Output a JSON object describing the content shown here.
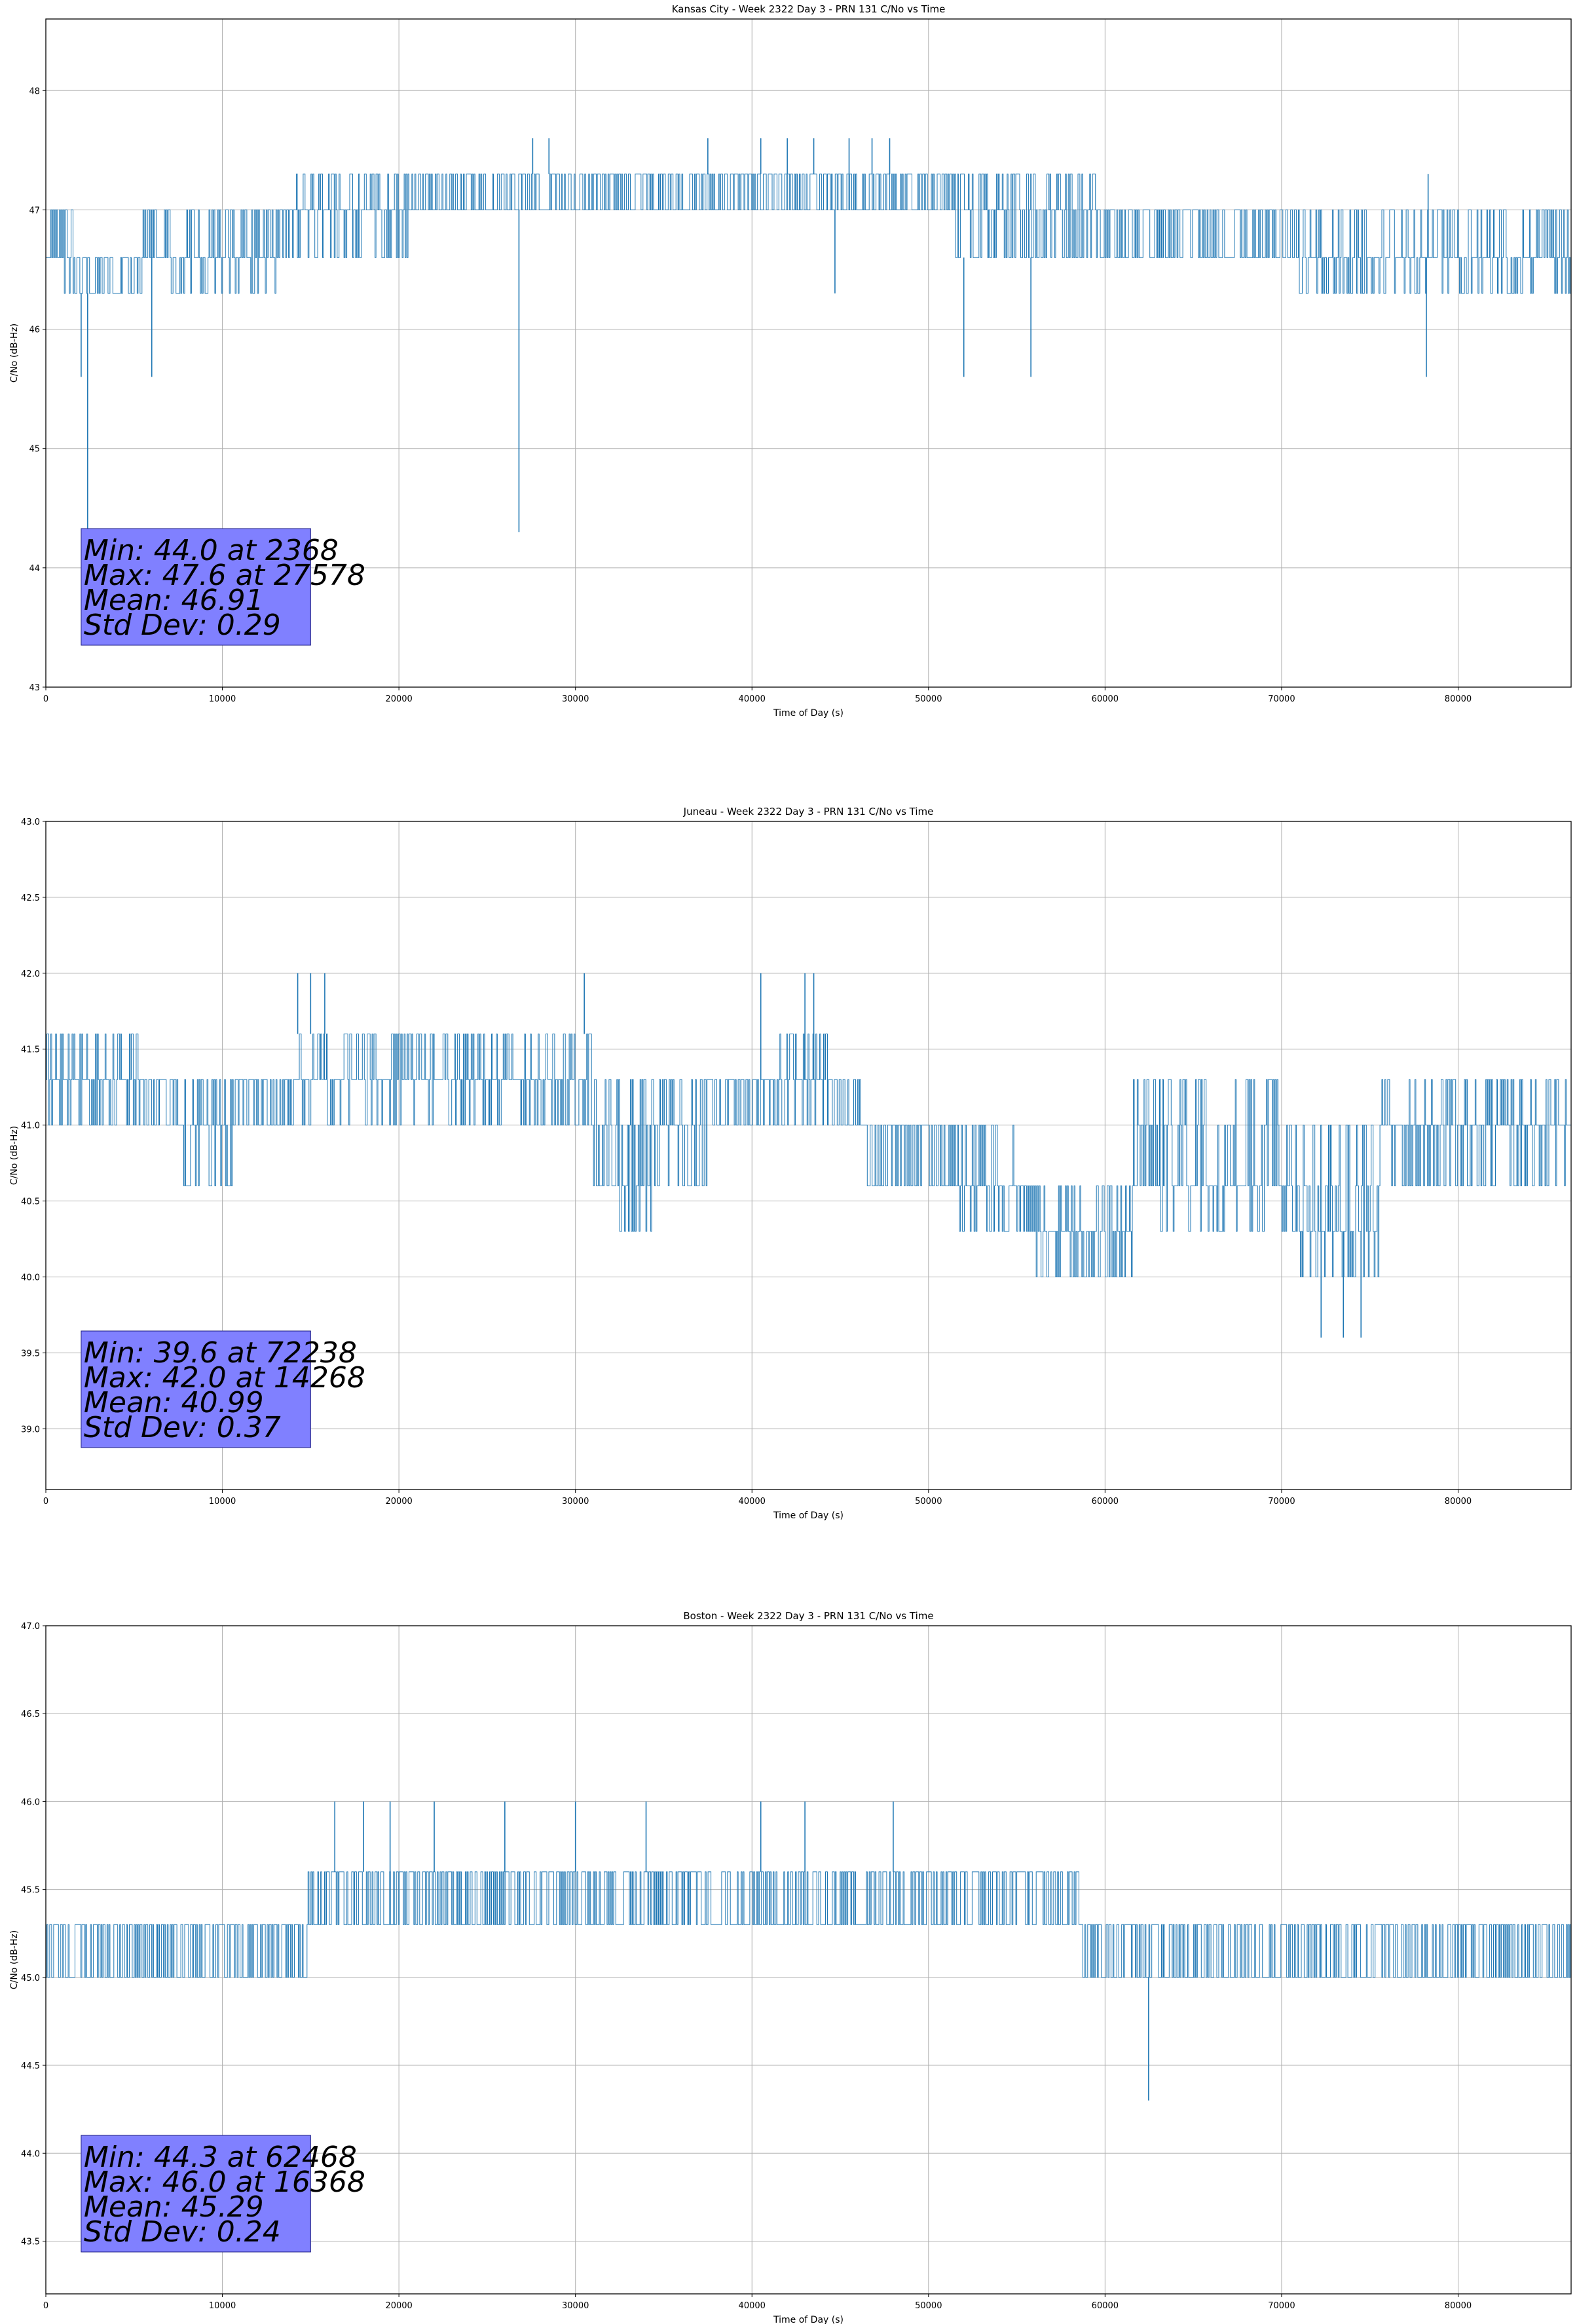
{
  "chart_data": [
    {
      "type": "line",
      "title": "Kansas City - Week 2322 Day 3 - PRN 131 C/No vs Time",
      "xlabel": "Time of Day (s)",
      "ylabel": "C/No (dB-Hz)",
      "xlim": [
        0,
        86400
      ],
      "ylim": [
        43,
        48.6
      ],
      "xticks": [
        0,
        10000,
        20000,
        30000,
        40000,
        50000,
        60000,
        70000,
        80000
      ],
      "xtick_labels": [
        "0",
        "10000",
        "20000",
        "30000",
        "40000",
        "50000",
        "60000",
        "70000",
        "80000"
      ],
      "yticks": [
        43,
        44,
        45,
        46,
        47,
        48
      ],
      "ytick_labels": [
        "43",
        "44",
        "45",
        "46",
        "47",
        "48"
      ],
      "grid": true,
      "color": "#1f77b4",
      "series": [
        {
          "name": "C/No",
          "levels": [
            46.3,
            46.6,
            47.0,
            47.3,
            47.6
          ],
          "segments": [
            {
              "x0": 0,
              "x1": 1500,
              "lo": 46.6,
              "hi": 47.0
            },
            {
              "x0": 1000,
              "x1": 5500,
              "lo": 46.3,
              "hi": 46.6
            },
            {
              "x0": 5500,
              "x1": 13000,
              "lo": 46.6,
              "hi": 47.0
            },
            {
              "x0": 7000,
              "x1": 13000,
              "lo": 46.3,
              "hi": 46.6
            },
            {
              "x0": 13000,
              "x1": 20500,
              "lo": 46.6,
              "hi": 47.0
            },
            {
              "x0": 14000,
              "x1": 20500,
              "lo": 47.0,
              "hi": 47.3
            },
            {
              "x0": 20500,
              "x1": 51500,
              "lo": 47.0,
              "hi": 47.3
            },
            {
              "x0": 51500,
              "x1": 59500,
              "lo": 46.6,
              "hi": 47.3
            },
            {
              "x0": 59500,
              "x1": 86400,
              "lo": 46.6,
              "hi": 47.0
            },
            {
              "x0": 71000,
              "x1": 86400,
              "lo": 46.3,
              "hi": 46.6
            }
          ],
          "dips": [
            [
              2000,
              45.6
            ],
            [
              2368,
              44.0
            ],
            [
              6000,
              45.6
            ],
            [
              26800,
              44.3
            ],
            [
              44700,
              46.3
            ],
            [
              52000,
              45.6
            ],
            [
              55800,
              45.6
            ],
            [
              78200,
              45.6
            ]
          ],
          "peaks": [
            [
              27578,
              47.6
            ],
            [
              28500,
              47.6
            ],
            [
              37500,
              47.6
            ],
            [
              40500,
              47.6
            ],
            [
              42000,
              47.6
            ],
            [
              43500,
              47.6
            ],
            [
              45500,
              47.6
            ],
            [
              46800,
              47.6
            ],
            [
              47800,
              47.6
            ],
            [
              78300,
              47.3
            ]
          ]
        }
      ],
      "stats": {
        "min": "Min: 44.0 at 2368",
        "max": "Max: 47.6 at 27578",
        "mean": "Mean: 46.91",
        "std": "Std Dev: 0.29"
      },
      "stats_box_color": "#8080ff",
      "legend": "none"
    },
    {
      "type": "line",
      "title": "Juneau - Week 2322 Day 3 - PRN 131 C/No vs Time",
      "xlabel": "Time of Day (s)",
      "ylabel": "C/No (dB-Hz)",
      "xlim": [
        0,
        86400
      ],
      "ylim": [
        38.6,
        43.0
      ],
      "xticks": [
        0,
        10000,
        20000,
        30000,
        40000,
        50000,
        60000,
        70000,
        80000
      ],
      "xtick_labels": [
        "0",
        "10000",
        "20000",
        "30000",
        "40000",
        "50000",
        "60000",
        "70000",
        "80000"
      ],
      "yticks": [
        39.0,
        39.5,
        40.0,
        40.5,
        41.0,
        41.5,
        42.0,
        42.5,
        43.0
      ],
      "ytick_labels": [
        "39.0",
        "39.5",
        "40.0",
        "40.5",
        "41.0",
        "41.5",
        "42.0",
        "42.5",
        "43.0"
      ],
      "grid": true,
      "color": "#1f77b4",
      "series": [
        {
          "name": "C/No",
          "levels": [
            39.6,
            40.0,
            40.3,
            40.6,
            41.0,
            41.3,
            41.6,
            42.0
          ],
          "segments": [
            {
              "x0": 0,
              "x1": 5500,
              "lo": 41.0,
              "hi": 41.3
            },
            {
              "x0": 0,
              "x1": 5500,
              "lo": 41.3,
              "hi": 41.6
            },
            {
              "x0": 5500,
              "x1": 14200,
              "lo": 41.0,
              "hi": 41.3
            },
            {
              "x0": 7500,
              "x1": 11500,
              "lo": 40.6,
              "hi": 41.0
            },
            {
              "x0": 14200,
              "x1": 31000,
              "lo": 41.3,
              "hi": 41.6
            },
            {
              "x0": 14200,
              "x1": 31000,
              "lo": 41.0,
              "hi": 41.3
            },
            {
              "x0": 31000,
              "x1": 37500,
              "lo": 40.6,
              "hi": 41.3
            },
            {
              "x0": 32000,
              "x1": 34500,
              "lo": 40.3,
              "hi": 40.6
            },
            {
              "x0": 37500,
              "x1": 46500,
              "lo": 41.0,
              "hi": 41.3
            },
            {
              "x0": 41500,
              "x1": 44500,
              "lo": 41.3,
              "hi": 41.6
            },
            {
              "x0": 46500,
              "x1": 51500,
              "lo": 40.6,
              "hi": 41.0
            },
            {
              "x0": 51500,
              "x1": 55000,
              "lo": 40.6,
              "hi": 41.0
            },
            {
              "x0": 51500,
              "x1": 61500,
              "lo": 40.3,
              "hi": 40.6
            },
            {
              "x0": 56000,
              "x1": 61500,
              "lo": 40.0,
              "hi": 40.3
            },
            {
              "x0": 61500,
              "x1": 70000,
              "lo": 40.6,
              "hi": 41.3
            },
            {
              "x0": 63000,
              "x1": 69000,
              "lo": 40.3,
              "hi": 40.6
            },
            {
              "x0": 70000,
              "x1": 75500,
              "lo": 40.3,
              "hi": 41.0
            },
            {
              "x0": 71000,
              "x1": 75500,
              "lo": 40.0,
              "hi": 40.3
            },
            {
              "x0": 75500,
              "x1": 86400,
              "lo": 40.6,
              "hi": 41.0
            },
            {
              "x0": 75500,
              "x1": 86400,
              "lo": 41.0,
              "hi": 41.3
            }
          ],
          "dips": [
            [
              72238,
              39.6
            ],
            [
              73500,
              39.6
            ],
            [
              74500,
              39.6
            ]
          ],
          "peaks": [
            [
              14268,
              42.0
            ],
            [
              15000,
              42.0
            ],
            [
              15800,
              42.0
            ],
            [
              30500,
              42.0
            ],
            [
              40500,
              42.0
            ],
            [
              43000,
              42.0
            ],
            [
              43500,
              42.0
            ]
          ]
        }
      ],
      "stats": {
        "min": "Min: 39.6 at 72238",
        "max": "Max: 42.0 at 14268",
        "mean": "Mean: 40.99",
        "std": "Std Dev: 0.37"
      },
      "stats_box_color": "#8080ff",
      "legend": "none"
    },
    {
      "type": "line",
      "title": "Boston - Week 2322 Day 3 - PRN 131 C/No vs Time",
      "xlabel": "Time of Day (s)",
      "ylabel": "C/No (dB-Hz)",
      "xlim": [
        0,
        86400
      ],
      "ylim": [
        43.2,
        47.0
      ],
      "xticks": [
        0,
        10000,
        20000,
        30000,
        40000,
        50000,
        60000,
        70000,
        80000
      ],
      "xtick_labels": [
        "0",
        "10000",
        "20000",
        "30000",
        "40000",
        "50000",
        "60000",
        "70000",
        "80000"
      ],
      "yticks": [
        43.5,
        44.0,
        44.5,
        45.0,
        45.5,
        46.0,
        46.5,
        47.0
      ],
      "ytick_labels": [
        "43.5",
        "44.0",
        "44.5",
        "45.0",
        "45.5",
        "46.0",
        "46.5",
        "47.0"
      ],
      "grid": true,
      "color": "#1f77b4",
      "series": [
        {
          "name": "C/No",
          "levels": [
            44.3,
            44.6,
            45.0,
            45.3,
            45.6,
            46.0
          ],
          "segments": [
            {
              "x0": 0,
              "x1": 14800,
              "lo": 45.0,
              "hi": 45.3
            },
            {
              "x0": 14800,
              "x1": 58500,
              "lo": 45.3,
              "hi": 45.6
            },
            {
              "x0": 58500,
              "x1": 86400,
              "lo": 45.0,
              "hi": 45.3
            }
          ],
          "dips": [
            [
              62468,
              44.3
            ]
          ],
          "peaks": [
            [
              16368,
              46.0
            ],
            [
              18000,
              46.0
            ],
            [
              19500,
              46.0
            ],
            [
              22000,
              46.0
            ],
            [
              26000,
              46.0
            ],
            [
              30000,
              46.0
            ],
            [
              34000,
              46.0
            ],
            [
              40500,
              46.0
            ],
            [
              43000,
              46.0
            ],
            [
              48000,
              46.0
            ]
          ]
        }
      ],
      "stats": {
        "min": "Min: 44.3 at 62468",
        "max": "Max: 46.0 at 16368",
        "mean": "Mean: 45.29",
        "std": "Std Dev: 0.24"
      },
      "stats_box_color": "#8080ff",
      "legend": "none"
    }
  ]
}
